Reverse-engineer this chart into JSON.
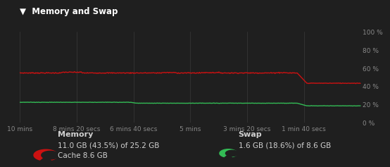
{
  "title": "Memory and Swap",
  "background_color": "#1f1f1f",
  "plot_bg_color": "#1f1f1f",
  "grid_color": "#3a3a3a",
  "text_color": "#d0d0d0",
  "title_color": "#ffffff",
  "xtick_color": "#888888",
  "ytick_color": "#888888",
  "x_tick_labels": [
    "10 mins",
    "8 mins 20 secs",
    "6 mins 40 secs",
    "5 mins",
    "3 mins 20 secs",
    "1 min 40 secs"
  ],
  "x_tick_positions": [
    0,
    100,
    200,
    300,
    400,
    500
  ],
  "y_tick_labels": [
    "0 %",
    "20 %",
    "40 %",
    "60 %",
    "80 %",
    "100 %"
  ],
  "y_tick_positions": [
    0,
    20,
    40,
    60,
    80,
    100
  ],
  "ylim": [
    0,
    100
  ],
  "xlim": [
    0,
    600
  ],
  "memory_color": "#cc1111",
  "swap_color": "#33bb55",
  "legend_memory_title": "Memory",
  "legend_memory_line1": "11.0 GB (43.5%) of 25.2 GB",
  "legend_memory_line2": "Cache 8.6 GB",
  "legend_swap_title": "Swap",
  "legend_swap_line1": "1.6 GB (18.6%) of 8.6 GB",
  "memory_baseline_pct": 54.8,
  "memory_drop_pct": 43.5,
  "memory_drop_start_x": 488,
  "memory_drop_end_x": 505,
  "swap_baseline1_pct": 22.5,
  "swap_step_x": 195,
  "swap_baseline2_pct": 21.5,
  "swap_drop_pct": 18.6,
  "swap_drop_start_x": 488,
  "swap_drop_end_x": 505
}
